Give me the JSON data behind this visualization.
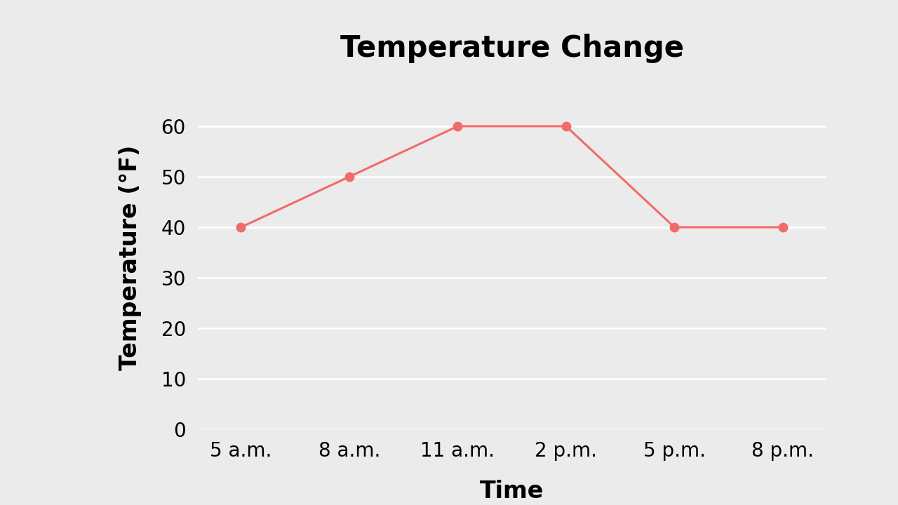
{
  "title": "Temperature Change",
  "xlabel": "Time",
  "ylabel": "Temperature (°F)",
  "x_labels": [
    "5 a.m.",
    "8 a.m.",
    "11 a.m.",
    "2 p.m.",
    "5 p.m.",
    "8 p.m."
  ],
  "y_values": [
    40,
    50,
    60,
    60,
    40,
    40
  ],
  "ylim": [
    0,
    68
  ],
  "yticks": [
    0,
    10,
    20,
    30,
    40,
    50,
    60
  ],
  "line_color": "#F16B6B",
  "marker_color": "#F16B6B",
  "marker_size": 9,
  "line_width": 2.2,
  "background_color": "#EBEBEB",
  "plot_bg_color": "#EBEBEB",
  "grid_color": "#FFFFFF",
  "title_fontsize": 30,
  "label_fontsize": 24,
  "tick_fontsize": 20,
  "title_fontweight": "bold",
  "label_fontweight": "bold"
}
